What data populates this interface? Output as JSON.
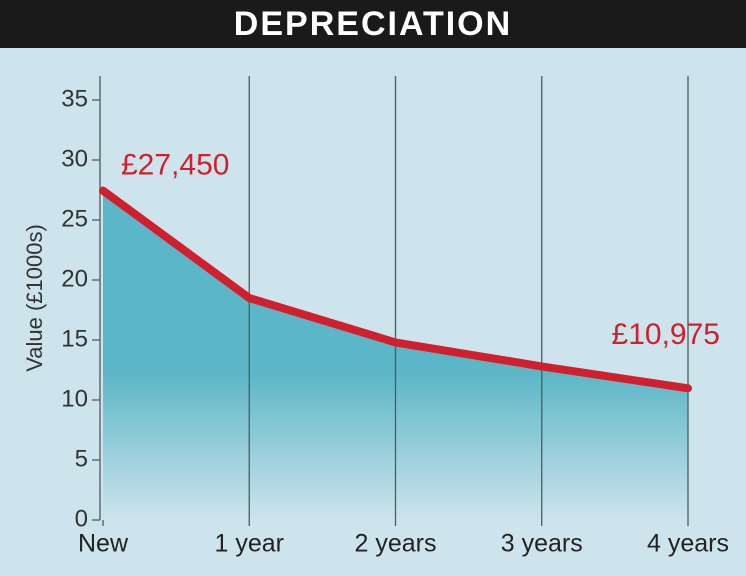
{
  "chart_data": {
    "type": "area-line",
    "title": "DEPRECIATION",
    "y_label": "Value (£1000s)",
    "categories": [
      "New",
      "1 year",
      "2 years",
      "3 years",
      "4 years"
    ],
    "values": [
      27.45,
      18.5,
      14.8,
      12.8,
      10.975
    ],
    "value_labels": [
      "£27,450",
      null,
      null,
      null,
      "£10,975"
    ],
    "color": "#d0202e",
    "fill_color": "#5bb6c7",
    "ylim": [
      0,
      37
    ],
    "yticks": [
      0,
      5,
      10,
      15,
      20,
      25,
      30,
      35
    ],
    "grid": true
  }
}
